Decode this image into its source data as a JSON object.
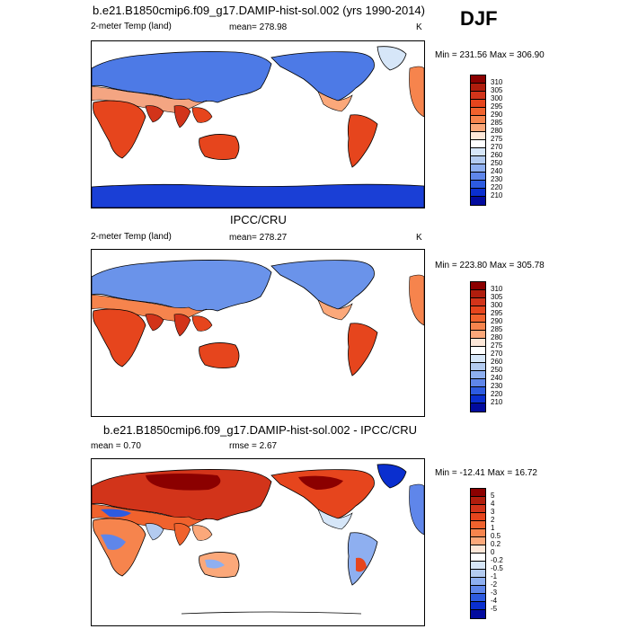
{
  "season": "DJF",
  "panels": [
    {
      "title": "b.e21.B1850cmip6.f09_g17.DAMIP-hist-sol.002 (yrs 1990-2014)",
      "left_label": "2-meter Temp (land)",
      "center_label": "mean= 278.98",
      "right_label": "K",
      "minmax": "Min = 231.56 Max = 306.90",
      "colorbar": {
        "labels": [
          "310",
          "305",
          "300",
          "295",
          "290",
          "285",
          "280",
          "275",
          "270",
          "260",
          "250",
          "240",
          "230",
          "220",
          "210"
        ],
        "colors": [
          "#8b0000",
          "#b01d0d",
          "#d2341a",
          "#e6451d",
          "#f0622d",
          "#f6844d",
          "#fba87a",
          "#fde7d8",
          "#ffffff",
          "#d6e6f8",
          "#b3cbf0",
          "#8eaff0",
          "#5f86ea",
          "#2d5be0",
          "#0a2fcf",
          "#020b9e"
        ]
      }
    },
    {
      "title": "IPCC/CRU",
      "left_label": "2-meter Temp (land)",
      "center_label": "mean= 278.27",
      "right_label": "K",
      "minmax": "Min = 223.80 Max = 305.78",
      "colorbar": {
        "labels": [
          "310",
          "305",
          "300",
          "295",
          "290",
          "285",
          "280",
          "275",
          "270",
          "260",
          "250",
          "240",
          "230",
          "220",
          "210"
        ],
        "colors": [
          "#8b0000",
          "#b01d0d",
          "#d2341a",
          "#e6451d",
          "#f0622d",
          "#f6844d",
          "#fba87a",
          "#fde7d8",
          "#ffffff",
          "#d6e6f8",
          "#b3cbf0",
          "#8eaff0",
          "#5f86ea",
          "#2d5be0",
          "#0a2fcf",
          "#020b9e"
        ]
      }
    },
    {
      "title": "b.e21.B1850cmip6.f09_g17.DAMIP-hist-sol.002 - IPCC/CRU",
      "left_label": "mean =   0.70",
      "center_label": "rmse =   2.67",
      "right_label": "",
      "minmax": "Min = -12.41 Max =  16.72",
      "colorbar": {
        "labels": [
          "5",
          "4",
          "3",
          "2",
          "1",
          "0.5",
          "0.2",
          "0",
          "-0.2",
          "-0.5",
          "-1",
          "-2",
          "-3",
          "-4",
          "-5"
        ],
        "colors": [
          "#8b0000",
          "#b01d0d",
          "#d2341a",
          "#e6451d",
          "#f0622d",
          "#f6844d",
          "#fba87a",
          "#fde7d8",
          "#ffffff",
          "#d6e6f8",
          "#b3cbf0",
          "#8eaff0",
          "#5f86ea",
          "#2d5be0",
          "#0a2fcf",
          "#020b9e"
        ]
      }
    }
  ]
}
